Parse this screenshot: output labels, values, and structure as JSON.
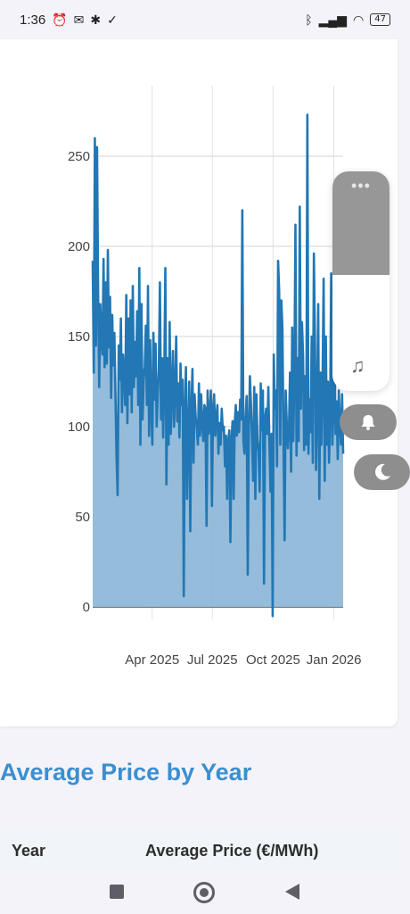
{
  "status_bar": {
    "time": "1:36",
    "left_icons": [
      "alarm-icon",
      "gmail-icon",
      "bug-icon",
      "check-circle-icon"
    ],
    "right_icons": [
      "bluetooth-icon",
      "signal-icon",
      "wifi-icon"
    ],
    "battery": "47"
  },
  "chart_data": {
    "type": "area",
    "title": "",
    "xlabel": "",
    "ylabel": "",
    "x_range": [
      "2025-01-01",
      "2026-01-15"
    ],
    "ylim": [
      -5,
      290
    ],
    "y_ticks": [
      0,
      50,
      100,
      150,
      200,
      250
    ],
    "x_ticks": [
      {
        "label": "Apr 2025",
        "date": "2025-04-01"
      },
      {
        "label": "Jul 2025",
        "date": "2025-07-01"
      },
      {
        "label": "Oct 2025",
        "date": "2025-10-01"
      },
      {
        "label": "Jan 2026",
        "date": "2026-01-01"
      }
    ],
    "grid": true,
    "line_color": "#2277b4",
    "fill_color": "#8fb8d8",
    "series": [
      {
        "values": [
          192,
          130,
          260,
          145,
          255,
          175,
          122,
          168,
          148,
          140,
          193,
          133,
          180,
          135,
          198,
          144,
          172,
          116,
          162,
          134,
          152,
          118,
          83,
          62,
          145,
          126,
          160,
          108,
          140,
          128,
          112,
          173,
          102,
          160,
          118,
          170,
          108,
          178,
          122,
          147,
          128,
          164,
          112,
          188,
          90,
          168,
          104,
          126,
          133,
          156,
          112,
          178,
          95,
          148,
          111,
          90,
          152,
          115,
          146,
          100,
          118,
          132,
          180,
          104,
          138,
          94,
          127,
          188,
          68,
          138,
          90,
          158,
          96,
          120,
          142,
          100,
          118,
          150,
          103,
          124,
          94,
          135,
          112,
          126,
          6,
          108,
          133,
          60,
          95,
          125,
          42,
          110,
          132,
          80,
          118,
          105,
          100,
          90,
          124,
          95,
          118,
          102,
          92,
          112,
          110,
          45,
          120,
          96,
          108,
          120,
          56,
          110,
          118,
          95,
          104,
          112,
          85,
          102,
          90,
          110,
          98,
          100,
          78,
          95,
          60,
          92,
          98,
          36,
          92,
          103,
          60,
          102,
          112,
          95,
          108,
          97,
          115,
          104,
          220,
          92,
          85,
          104,
          117,
          18,
          98,
          128,
          112,
          92,
          70,
          122,
          60,
          118,
          92,
          86,
          64,
          124,
          98,
          120,
          13,
          105,
          110,
          96,
          122,
          90,
          64,
          96,
          -5,
          140,
          110,
          120,
          78,
          192,
          175,
          90,
          170,
          154,
          90,
          37,
          120,
          102,
          88,
          98,
          130,
          75,
          155,
          92,
          128,
          212,
          84,
          138,
          92,
          222,
          110,
          158,
          140,
          87,
          128,
          90,
          273,
          85,
          115,
          97,
          150,
          80,
          196,
          148,
          76,
          112,
          168,
          60,
          130,
          90,
          125,
          182,
          70,
          150,
          90,
          125,
          80,
          108,
          185,
          90,
          108,
          148,
          96,
          114,
          82,
          120,
          100,
          90,
          118,
          85
        ]
      }
    ]
  },
  "section": {
    "title": "Average Price by Year"
  },
  "table": {
    "columns": [
      "Year",
      "Average Price (€/MWh)"
    ]
  },
  "nav_bar": {
    "icons": [
      "recents-square-icon",
      "home-circle-icon",
      "back-triangle-icon"
    ]
  },
  "overlay": {
    "volume_level": 0.47,
    "icons": [
      "more-dots-icon",
      "music-note-icon",
      "bell-icon",
      "moon-icon"
    ]
  }
}
